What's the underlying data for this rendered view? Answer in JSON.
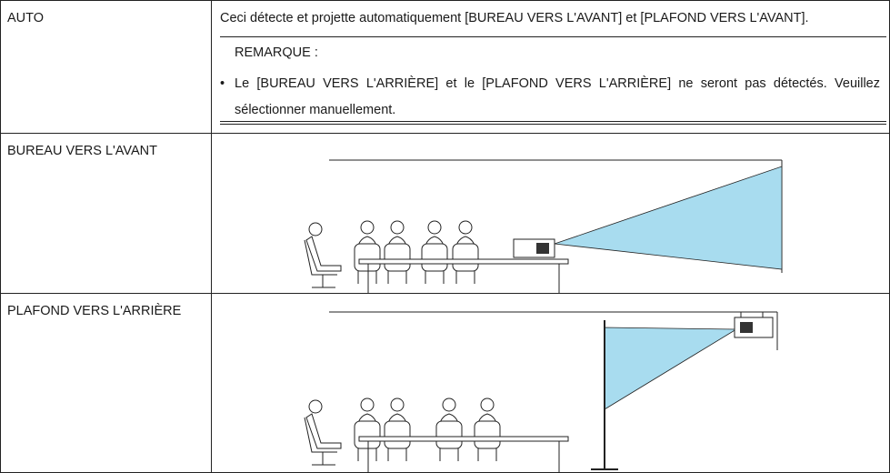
{
  "rows": [
    {
      "label": "AUTO",
      "text": "Ceci détecte et projette automatiquement [BUREAU VERS L'AVANT] et [PLAFOND VERS L'AVANT].",
      "note": {
        "title": "REMARQUE :",
        "items": [
          "Le [BUREAU VERS L'ARRIÈRE] et le [PLAFOND VERS L'ARRIÈRE] ne seront pas détectés. Veuillez sélectionner manuellement."
        ]
      }
    },
    {
      "label": "BUREAU VERS L'AVANT"
    },
    {
      "label": "PLAFOND VERS L'ARRIÈRE"
    }
  ]
}
